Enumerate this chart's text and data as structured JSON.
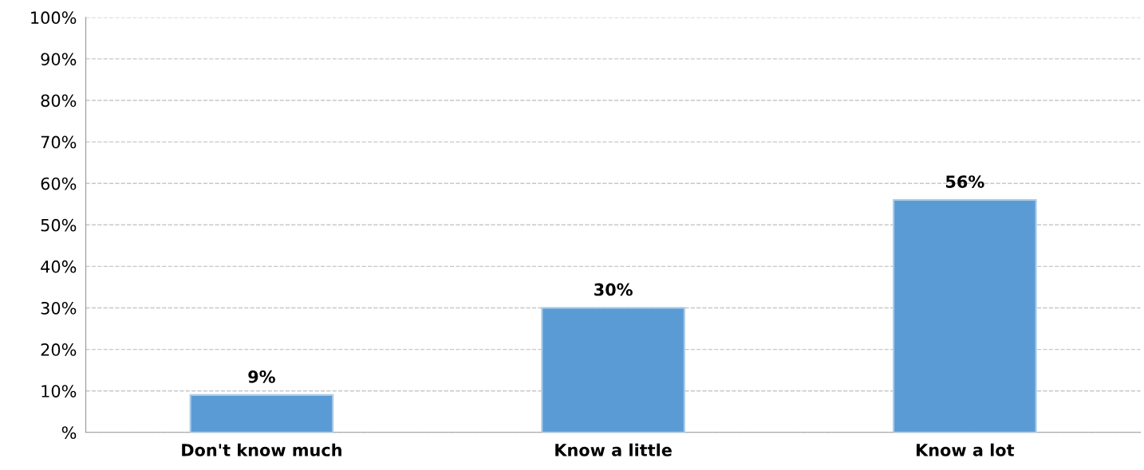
{
  "chart_data": {
    "type": "bar",
    "categories": [
      "Don't know much",
      "Know a little",
      "Know a lot"
    ],
    "values": [
      9,
      30,
      56
    ],
    "value_labels": [
      "9%",
      "30%",
      "56%"
    ],
    "color": "#5b9bd5",
    "ylim": [
      0,
      100
    ],
    "yticks": [
      {
        "value": 0,
        "label": "%"
      },
      {
        "value": 10,
        "label": "10%"
      },
      {
        "value": 20,
        "label": "20%"
      },
      {
        "value": 30,
        "label": "30%"
      },
      {
        "value": 40,
        "label": "40%"
      },
      {
        "value": 50,
        "label": "50%"
      },
      {
        "value": 60,
        "label": "60%"
      },
      {
        "value": 70,
        "label": "70%"
      },
      {
        "value": 80,
        "label": "80%"
      },
      {
        "value": 90,
        "label": "90%"
      },
      {
        "value": 100,
        "label": "100%"
      }
    ],
    "grid": "y",
    "line_style": "dashed"
  }
}
